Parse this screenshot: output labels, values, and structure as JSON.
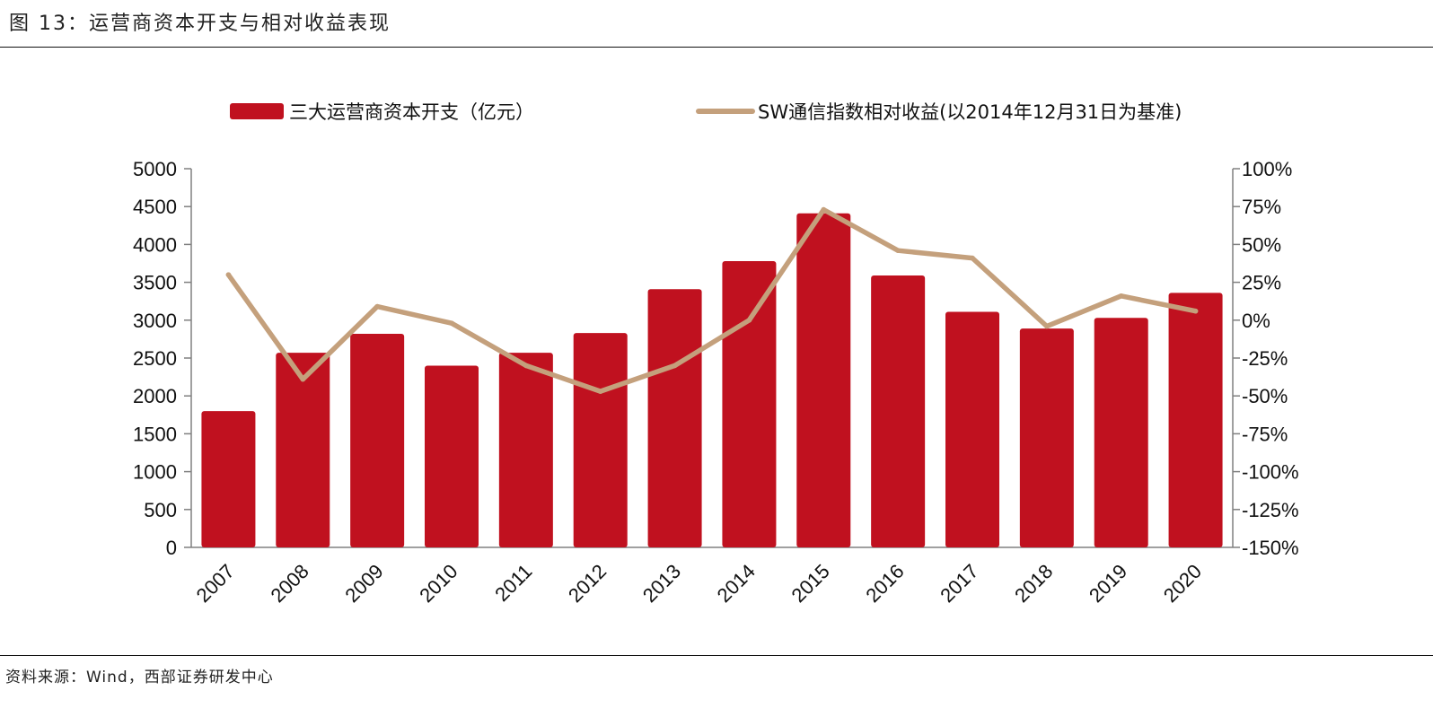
{
  "header": {
    "title": "图 13：运营商资本开支与相对收益表现"
  },
  "footer": {
    "source": "资料来源：Wind，西部证券研发中心"
  },
  "colors": {
    "bar": "#c0111f",
    "line": "#c4a07c",
    "axis": "#808080"
  },
  "chart_data": {
    "type": "bar",
    "categories": [
      "2007",
      "2008",
      "2009",
      "2010",
      "2011",
      "2012",
      "2013",
      "2014",
      "2015",
      "2016",
      "2017",
      "2018",
      "2019",
      "2020"
    ],
    "series": [
      {
        "name": "三大运营商资本开支（亿元）",
        "type": "bar",
        "axis": "left",
        "values": [
          1800,
          2570,
          2820,
          2400,
          2570,
          2830,
          3410,
          3780,
          4410,
          3590,
          3110,
          2890,
          3030,
          3360
        ]
      },
      {
        "name": "SW通信指数相对收益(以2014年12月31日为基准)",
        "type": "line",
        "axis": "right",
        "values": [
          30,
          -39,
          9,
          -2,
          -30,
          -47,
          -30,
          0,
          73,
          46,
          41,
          -4,
          16,
          6
        ]
      }
    ],
    "y_left": {
      "ylim": [
        0,
        5000
      ],
      "ticks": [
        "0",
        "500",
        "1000",
        "1500",
        "2000",
        "2500",
        "3000",
        "3500",
        "4000",
        "4500",
        "5000"
      ]
    },
    "y_right": {
      "ylim": [
        -150,
        100
      ],
      "ticks": [
        "-150%",
        "-125%",
        "-100%",
        "-75%",
        "-50%",
        "-25%",
        "0%",
        "25%",
        "50%",
        "75%",
        "100%"
      ]
    },
    "grid": false,
    "legend_position": "top"
  }
}
